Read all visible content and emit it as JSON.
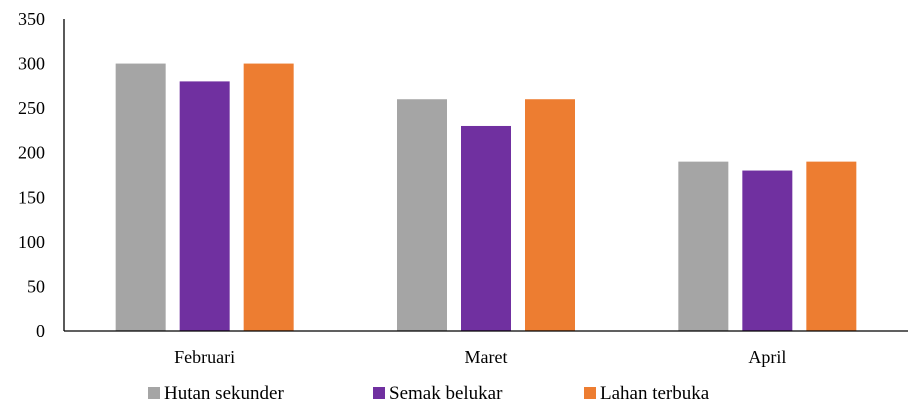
{
  "chart_data": {
    "type": "bar",
    "title": "",
    "xlabel": "",
    "ylabel": "",
    "categories": [
      "Februari",
      "Maret",
      "April"
    ],
    "series": [
      {
        "name": "Hutan sekunder",
        "color": "#a5a5a5",
        "values": [
          300,
          260,
          190
        ]
      },
      {
        "name": "Semak belukar",
        "color": "#7030a0",
        "values": [
          280,
          230,
          180
        ]
      },
      {
        "name": "Lahan terbuka",
        "color": "#ed7d31",
        "values": [
          300,
          260,
          190
        ]
      }
    ],
    "ylim": [
      0,
      350
    ],
    "yticks": [
      "0",
      "50",
      "100",
      "150",
      "200",
      "250",
      "300",
      "350"
    ],
    "grid": false,
    "legend_position": "bottom"
  }
}
